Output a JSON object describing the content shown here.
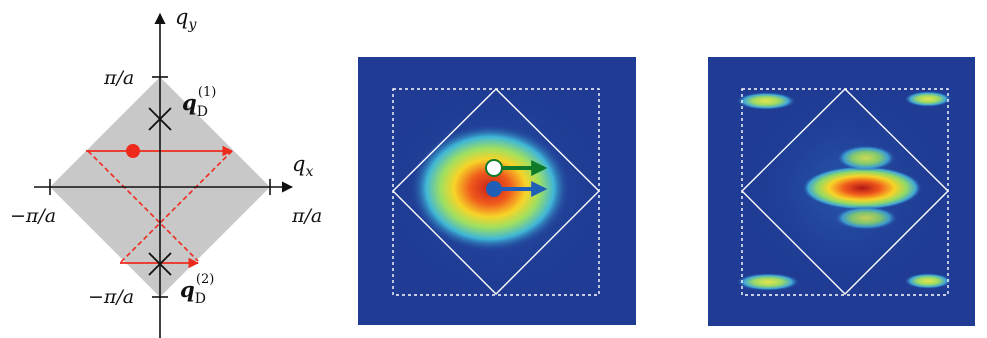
{
  "diagram": {
    "axes": {
      "x_label": "q",
      "x_label_sub": "x",
      "y_label": "q",
      "y_label_sub": "y"
    },
    "ticks": {
      "x_pos": "π/a",
      "x_neg": "−π/a",
      "y_pos": "π/a",
      "y_neg": "−π/a"
    },
    "points": {
      "d1_label": "q",
      "d1_sub": "D",
      "d1_sup": "(1)",
      "d2_label": "q",
      "d2_sub": "D",
      "d2_sup": "(2)"
    },
    "colors": {
      "zone_fill": "#c8c8c8",
      "path_red": "#ee2a1c",
      "arrow_green": "#0f7a2a",
      "arrow_blue": "#1f5fb8",
      "marker_white": "#ffffff",
      "image_bg": "#1f3b93"
    }
  }
}
